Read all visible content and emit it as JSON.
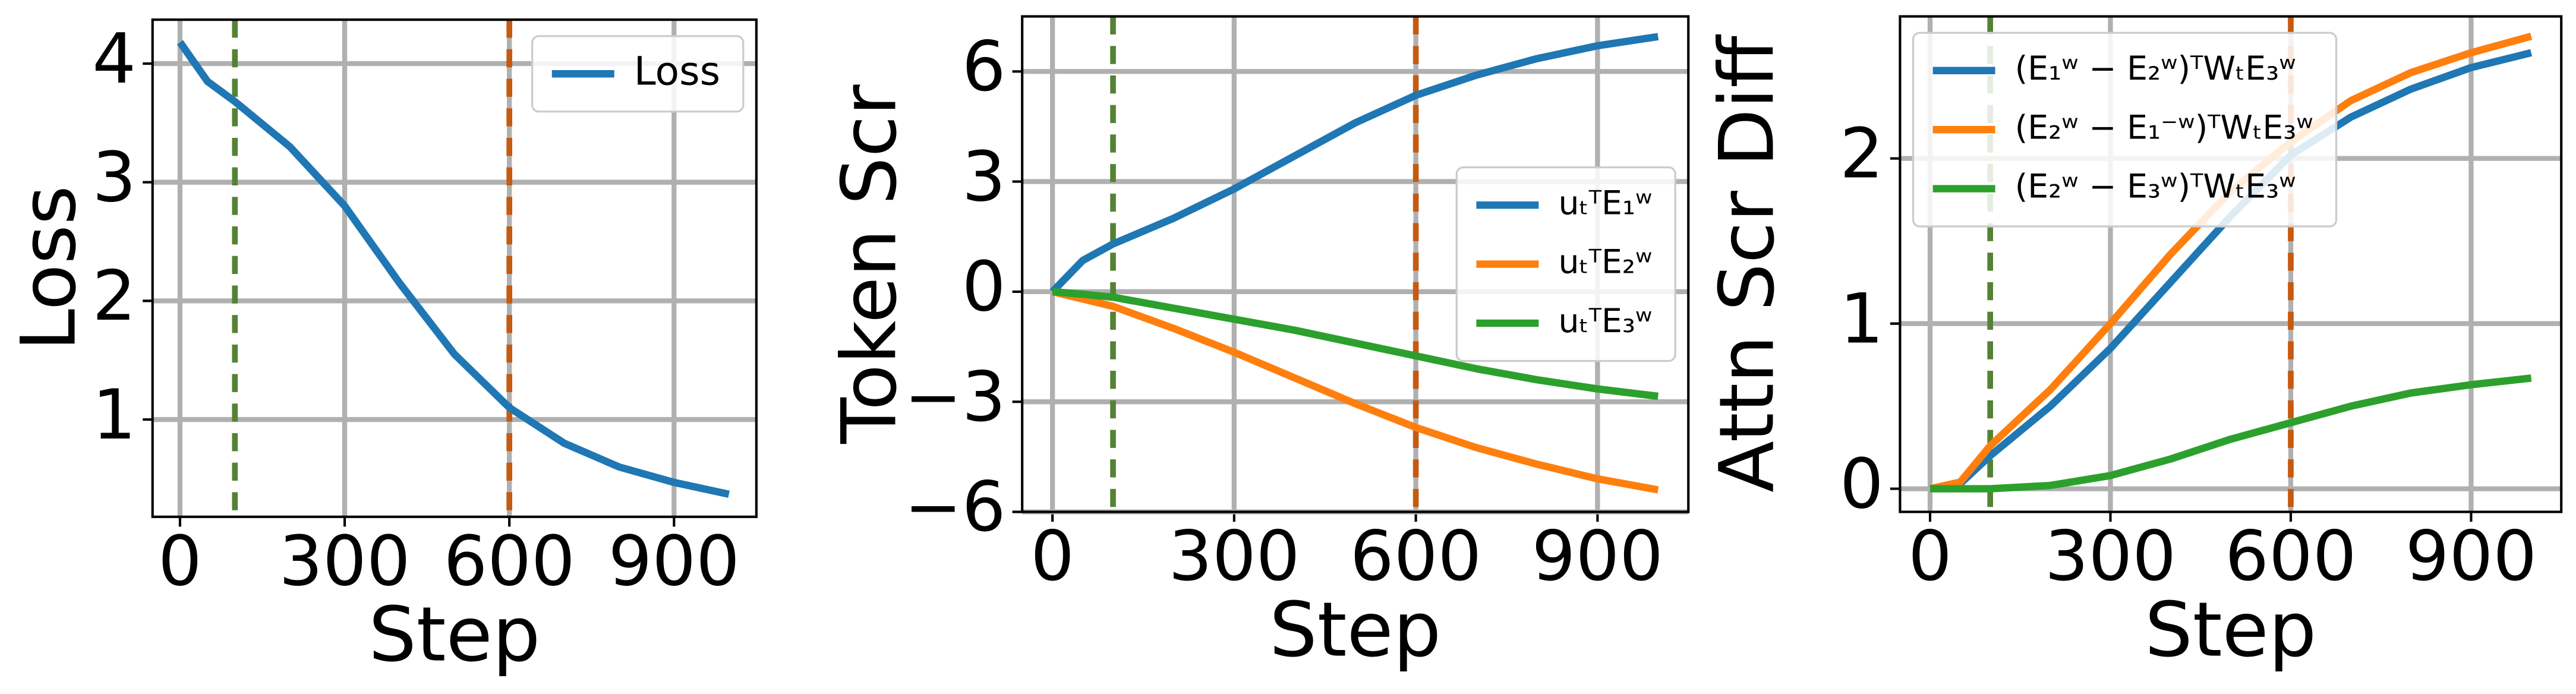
{
  "chart_data": [
    {
      "type": "line",
      "xlabel": "Step",
      "ylabel": "Loss",
      "x": [
        0,
        50,
        100,
        200,
        300,
        400,
        500,
        600,
        700,
        800,
        900,
        1000
      ],
      "series": [
        {
          "name": "Loss",
          "color": "#1f77b4",
          "values": [
            4.18,
            3.85,
            3.68,
            3.3,
            2.8,
            2.15,
            1.55,
            1.1,
            0.8,
            0.6,
            0.47,
            0.37
          ]
        }
      ],
      "xlim": [
        -50,
        1050
      ],
      "ylim": [
        0.18,
        4.37
      ],
      "xticks": [
        0,
        300,
        600,
        900
      ],
      "yticks": [
        1,
        2,
        3,
        4
      ],
      "grid": true,
      "legend": "upper right",
      "vlines": [
        {
          "x": 100,
          "color": "#548235"
        },
        {
          "x": 600,
          "color": "#c55a11"
        }
      ]
    },
    {
      "type": "line",
      "xlabel": "Step",
      "ylabel": "Token Scr",
      "x": [
        0,
        50,
        100,
        200,
        300,
        400,
        500,
        600,
        700,
        800,
        900,
        1000
      ],
      "series": [
        {
          "name": "uₜᵀE₁ʷ",
          "color": "#1f77b4",
          "values": [
            0,
            0.85,
            1.3,
            2.0,
            2.8,
            3.7,
            4.6,
            5.35,
            5.9,
            6.35,
            6.7,
            6.95
          ]
        },
        {
          "name": "uₜᵀE₂ʷ",
          "color": "#ff7f0e",
          "values": [
            0,
            -0.2,
            -0.4,
            -1.0,
            -1.65,
            -2.35,
            -3.05,
            -3.7,
            -4.25,
            -4.7,
            -5.1,
            -5.4
          ]
        },
        {
          "name": "uₜᵀE₃ʷ",
          "color": "#2ca02c",
          "values": [
            0,
            -0.07,
            -0.15,
            -0.45,
            -0.75,
            -1.05,
            -1.4,
            -1.75,
            -2.1,
            -2.4,
            -2.65,
            -2.85
          ]
        }
      ],
      "xlim": [
        -50,
        1050
      ],
      "ylim": [
        -6.0,
        7.5
      ],
      "xticks": [
        0,
        300,
        600,
        900
      ],
      "yticks": [
        {
          "value": -6,
          "label": "−6"
        },
        {
          "value": -3,
          "label": "−3"
        },
        0,
        3,
        6
      ],
      "grid": true,
      "legend": "center right",
      "vlines": [
        {
          "x": 100,
          "color": "#548235"
        },
        {
          "x": 600,
          "color": "#c55a11"
        }
      ]
    },
    {
      "type": "line",
      "xlabel": "Step",
      "ylabel": "Attn Scr Diff",
      "x": [
        0,
        50,
        100,
        200,
        300,
        400,
        500,
        600,
        700,
        800,
        900,
        1000
      ],
      "series": [
        {
          "name": "(E₁ʷ − E₂ʷ)ᵀWₜE₃ʷ",
          "color": "#1f77b4",
          "values": [
            0,
            0.03,
            0.2,
            0.5,
            0.85,
            1.25,
            1.65,
            2.02,
            2.25,
            2.42,
            2.55,
            2.64
          ]
        },
        {
          "name": "(E₂ʷ − E₁⁻ʷ)ᵀWₜE₃ʷ",
          "color": "#ff7f0e",
          "values": [
            0,
            0.04,
            0.26,
            0.6,
            1.0,
            1.42,
            1.8,
            2.1,
            2.35,
            2.52,
            2.64,
            2.74
          ]
        },
        {
          "name": "(E₂ʷ − E₃ʷ)ᵀWₜE₃ʷ",
          "color": "#2ca02c",
          "values": [
            0,
            0,
            0,
            0.02,
            0.08,
            0.18,
            0.3,
            0.4,
            0.5,
            0.58,
            0.63,
            0.67
          ]
        }
      ],
      "xlim": [
        -50,
        1050
      ],
      "ylim": [
        -0.14,
        2.86
      ],
      "xticks": [
        0,
        300,
        600,
        900
      ],
      "yticks": [
        0,
        1,
        2
      ],
      "grid": true,
      "legend": "upper left",
      "vlines": [
        {
          "x": 100,
          "color": "#548235"
        },
        {
          "x": 600,
          "color": "#c55a11"
        }
      ]
    }
  ]
}
